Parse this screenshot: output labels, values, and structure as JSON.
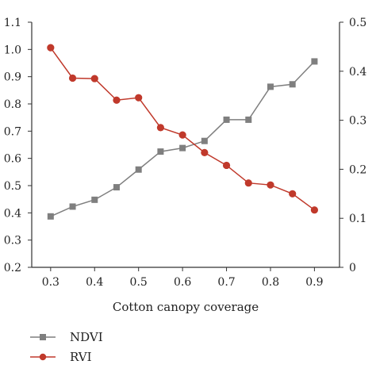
{
  "chart_data": {
    "type": "line",
    "title": "",
    "xlabel": "Cotton canopy coverage",
    "ylabel": "",
    "y2label": "",
    "x_ticks": [
      "0.3",
      "0.4",
      "0.5",
      "0.6",
      "0.7",
      "0.8",
      "0.9"
    ],
    "y_ticks": [
      "0.2",
      "0.3",
      "0.4",
      "0.5",
      "0.6",
      "0.7",
      "0.8",
      "0.9",
      "1.0",
      "1.1"
    ],
    "y2_ticks": [
      "0",
      "0.1",
      "0.2",
      "0.3",
      "0.4",
      "0.5"
    ],
    "xlim": [
      0.257,
      0.957
    ],
    "ylim": [
      0.2,
      1.1
    ],
    "y2lim": [
      0,
      0.5
    ],
    "grid": false,
    "legend_position": "bottom-left",
    "series": [
      {
        "name": "NDVI",
        "axis": "left",
        "marker": "square",
        "color": "#7f7f7f",
        "x": [
          0.3,
          0.35,
          0.4,
          0.45,
          0.5,
          0.55,
          0.6,
          0.65,
          0.7,
          0.75,
          0.8,
          0.85,
          0.9
        ],
        "values": [
          0.387,
          0.423,
          0.448,
          0.494,
          0.559,
          0.625,
          0.638,
          0.664,
          0.742,
          0.742,
          0.863,
          0.872,
          0.956
        ]
      },
      {
        "name": "RVI",
        "axis": "right",
        "marker": "circle",
        "color": "#c0392b",
        "x": [
          0.3,
          0.35,
          0.4,
          0.45,
          0.5,
          0.55,
          0.6,
          0.65,
          0.7,
          0.75,
          0.8,
          0.85,
          0.9
        ],
        "values": [
          0.448,
          0.386,
          0.385,
          0.341,
          0.346,
          0.285,
          0.27,
          0.234,
          0.208,
          0.172,
          0.168,
          0.15,
          0.117
        ]
      }
    ]
  }
}
